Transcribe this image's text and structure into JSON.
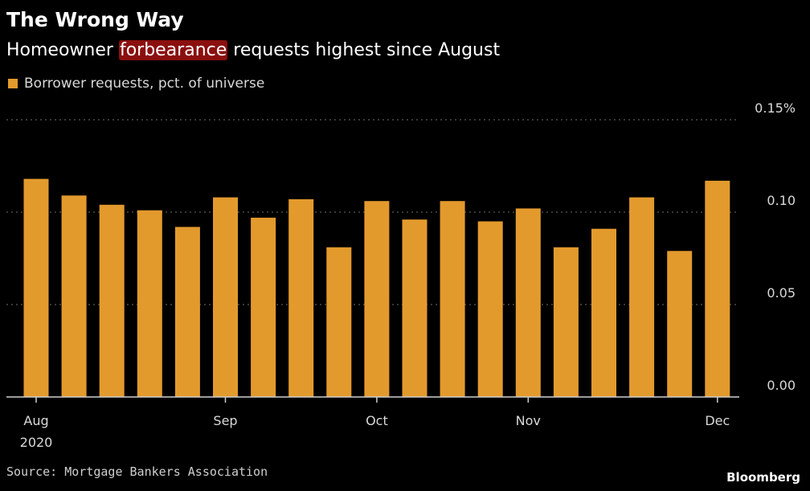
{
  "header": {
    "title": "The Wrong Way",
    "subtitle_before": "Homeowner ",
    "subtitle_highlight": "forbearance",
    "subtitle_after": " requests highest since August"
  },
  "legend": {
    "label": "Borrower requests, pct. of universe"
  },
  "footer": {
    "source": "Source: Mortgage Bankers Association",
    "brand": "Bloomberg"
  },
  "colors": {
    "bar": "#e39a2d",
    "background": "#000000",
    "grid": "#5a5a5a",
    "highlight": "#8b0f0f"
  },
  "chart_data": {
    "type": "bar",
    "ylim": [
      0,
      0.15
    ],
    "grid": true,
    "y_axis_side": "right",
    "y_ticks": [
      {
        "value": 0.15,
        "label": "0.15%"
      },
      {
        "value": 0.1,
        "label": "0.10"
      },
      {
        "value": 0.05,
        "label": "0.05"
      },
      {
        "value": 0.0,
        "label": "0.00"
      }
    ],
    "x_ticks": [
      {
        "index": 0,
        "label": "Aug",
        "sublabel": "2020"
      },
      {
        "index": 5,
        "label": "Sep",
        "sublabel": ""
      },
      {
        "index": 9,
        "label": "Oct",
        "sublabel": ""
      },
      {
        "index": 13,
        "label": "Nov",
        "sublabel": ""
      },
      {
        "index": 18,
        "label": "Dec",
        "sublabel": ""
      }
    ],
    "series": [
      {
        "name": "Borrower requests, pct. of universe",
        "values": [
          0.118,
          0.109,
          0.104,
          0.101,
          0.092,
          0.108,
          0.097,
          0.107,
          0.081,
          0.106,
          0.096,
          0.106,
          0.095,
          0.102,
          0.081,
          0.091,
          0.108,
          0.079,
          0.117
        ]
      }
    ]
  }
}
